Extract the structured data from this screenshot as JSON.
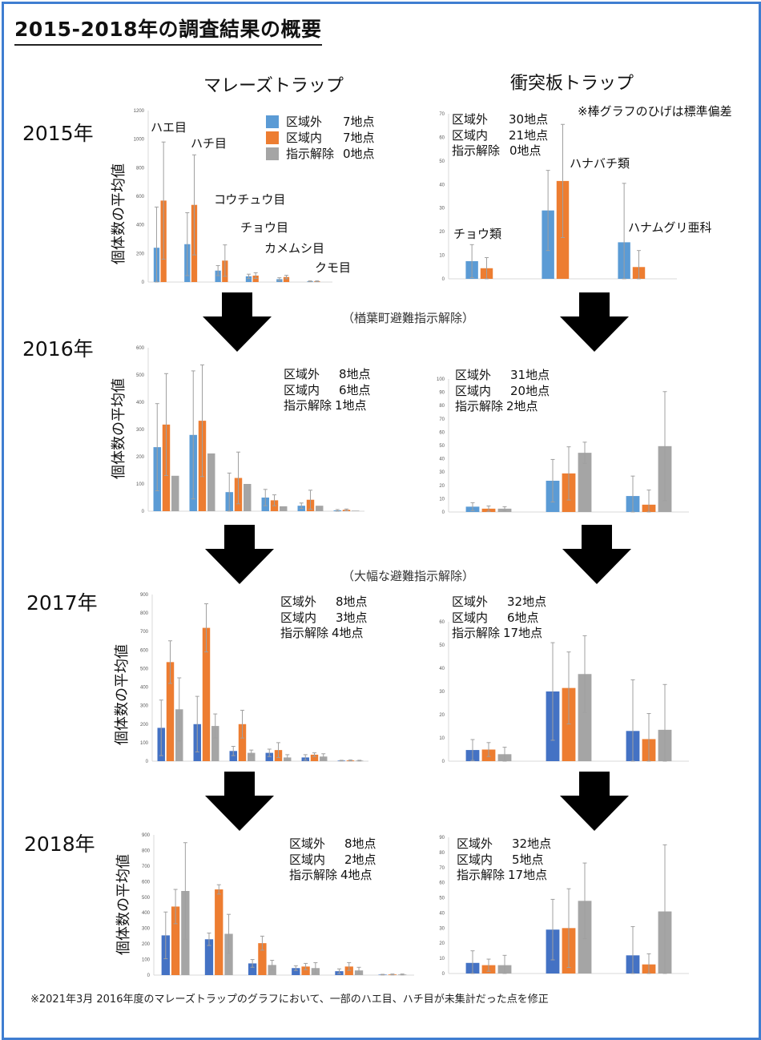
{
  "title": "2015-2018年の調査結果の概要",
  "columns": {
    "malaise": "マレーズトラップ",
    "impact": "衝突板トラップ"
  },
  "years": [
    "2015年",
    "2016年",
    "2017年",
    "2018年"
  ],
  "ylabel": "個体数の平均値",
  "std_note": "※棒グラフのひげは標準偏差",
  "transitions": {
    "t2016": "（楢葉町避難指示解除）",
    "t2017": "（大幅な避難指示解除）"
  },
  "footnote": "※2021年3月 2016年度のマレーズトラップのグラフにおいて、一部のハエ目、ハチ目が未集計だった点を修正",
  "legend": {
    "outside": "区域外",
    "inside": "区域内",
    "lifted": "指示解除",
    "colors_2015": {
      "outside": "#5b9bd5",
      "inside": "#ed7d31",
      "lifted": "#a5a5a5"
    }
  },
  "malaise_categories_2015": [
    "ハエ目",
    "ハチ目",
    "コウチュウ目",
    "チョウ目",
    "カメムシ目",
    "クモ目"
  ],
  "impact_categories_2015": [
    "チョウ類",
    "ハナバチ類",
    "ハナムグリ亜科"
  ],
  "counts": {
    "m2015": [
      "7地点",
      "7地点",
      "0地点"
    ],
    "i2015": [
      "30地点",
      "21地点",
      "0地点"
    ],
    "m2016": [
      "8地点",
      "6地点",
      "1地点"
    ],
    "i2016": [
      "31地点",
      "20地点",
      "2地点"
    ],
    "m2017": [
      "8地点",
      "3地点",
      "4地点"
    ],
    "i2017": [
      "32地点",
      "6地点",
      "17地点"
    ],
    "m2018": [
      "8地点",
      "2地点",
      "4地点"
    ],
    "i2018": [
      "32地点",
      "5地点",
      "17地点"
    ]
  },
  "chart_data": [
    {
      "id": "m2015",
      "type": "bar",
      "title": "マレーズトラップ 2015年",
      "ylabel": "個体数の平均値",
      "ylim": [
        0,
        1200
      ],
      "yticks": [
        0,
        200,
        400,
        600,
        800,
        1000,
        1200
      ],
      "categories": [
        "ハエ目",
        "ハチ目",
        "コウチュウ目",
        "チョウ目",
        "カメムシ目",
        "クモ目"
      ],
      "colors": [
        "#5b9bd5",
        "#ed7d31",
        "#a5a5a5"
      ],
      "series": [
        {
          "name": "区域外",
          "values": [
            240,
            265,
            80,
            40,
            20,
            5
          ],
          "err": [
            285,
            220,
            35,
            15,
            10,
            3
          ]
        },
        {
          "name": "区域内",
          "values": [
            570,
            540,
            150,
            45,
            35,
            5
          ],
          "err": [
            410,
            350,
            110,
            20,
            12,
            3
          ]
        }
      ]
    },
    {
      "id": "i2015",
      "type": "bar",
      "title": "衝突板トラップ 2015年",
      "ylabel": "",
      "ylim": [
        0,
        70
      ],
      "yticks": [
        0,
        10,
        20,
        30,
        40,
        50,
        60,
        70
      ],
      "categories": [
        "チョウ類",
        "ハナバチ類",
        "ハナムグリ亜科"
      ],
      "colors": [
        "#5b9bd5",
        "#ed7d31",
        "#a5a5a5"
      ],
      "series": [
        {
          "name": "区域外",
          "values": [
            7.5,
            29,
            15.5
          ],
          "err": [
            7,
            17,
            25
          ]
        },
        {
          "name": "区域内",
          "values": [
            4.5,
            41.5,
            5
          ],
          "err": [
            4.5,
            24,
            7
          ]
        }
      ]
    },
    {
      "id": "m2016",
      "type": "bar",
      "title": "マレーズトラップ 2016年",
      "ylabel": "個体数の平均値",
      "ylim": [
        0,
        600
      ],
      "yticks": [
        0,
        100,
        200,
        300,
        400,
        500,
        600
      ],
      "categories": [
        "ハエ目",
        "ハチ目",
        "コウチュウ目",
        "チョウ目",
        "カメムシ目",
        "クモ目"
      ],
      "colors": [
        "#5b9bd5",
        "#ed7d31",
        "#a5a5a5"
      ],
      "series": [
        {
          "name": "区域外",
          "values": [
            235,
            280,
            70,
            50,
            20,
            3
          ],
          "err": [
            160,
            235,
            70,
            30,
            10,
            3
          ]
        },
        {
          "name": "区域内",
          "values": [
            318,
            332,
            122,
            40,
            42,
            5
          ],
          "err": [
            187,
            205,
            95,
            20,
            35,
            3
          ]
        },
        {
          "name": "指示解除",
          "values": [
            130,
            212,
            100,
            18,
            20,
            2
          ],
          "err": [
            0,
            0,
            0,
            0,
            0,
            0
          ]
        }
      ]
    },
    {
      "id": "i2016",
      "type": "bar",
      "title": "衝突板トラップ 2016年",
      "ylabel": "",
      "ylim": [
        0,
        100
      ],
      "yticks": [
        0,
        10,
        20,
        30,
        40,
        50,
        60,
        70,
        80,
        90,
        100
      ],
      "categories": [
        "チョウ類",
        "ハナバチ類",
        "ハナムグリ亜科"
      ],
      "colors": [
        "#5b9bd5",
        "#ed7d31",
        "#a5a5a5"
      ],
      "series": [
        {
          "name": "区域外",
          "values": [
            4,
            23.5,
            12
          ],
          "err": [
            3,
            16,
            15
          ]
        },
        {
          "name": "区域内",
          "values": [
            2.5,
            29,
            5.5
          ],
          "err": [
            2,
            20,
            11
          ]
        },
        {
          "name": "指示解除",
          "values": [
            2.5,
            44.5,
            49.5
          ],
          "err": [
            1.5,
            8,
            41
          ]
        }
      ]
    },
    {
      "id": "m2017",
      "type": "bar",
      "title": "マレーズトラップ 2017年",
      "ylabel": "個体数の平均値",
      "ylim": [
        0,
        900
      ],
      "yticks": [
        0,
        100,
        200,
        300,
        400,
        500,
        600,
        700,
        800,
        900
      ],
      "categories": [
        "ハエ目",
        "ハチ目",
        "コウチュウ目",
        "チョウ目",
        "カメムシ目",
        "クモ目"
      ],
      "colors": [
        "#4472c4",
        "#ed7d31",
        "#a5a5a5"
      ],
      "series": [
        {
          "name": "区域外",
          "values": [
            180,
            200,
            55,
            45,
            20,
            3
          ],
          "err": [
            150,
            150,
            25,
            20,
            15,
            2
          ]
        },
        {
          "name": "区域内",
          "values": [
            535,
            720,
            200,
            60,
            35,
            4
          ],
          "err": [
            115,
            130,
            75,
            40,
            10,
            3
          ]
        },
        {
          "name": "指示解除",
          "values": [
            280,
            190,
            45,
            20,
            25,
            3
          ],
          "err": [
            170,
            65,
            15,
            15,
            15,
            2
          ]
        }
      ]
    },
    {
      "id": "i2017",
      "type": "bar",
      "title": "衝突板トラップ 2017年",
      "ylabel": "",
      "ylim": [
        0,
        60
      ],
      "yticks": [
        0,
        10,
        20,
        30,
        40,
        50,
        60
      ],
      "categories": [
        "チョウ類",
        "ハナバチ類",
        "ハナムグリ亜科"
      ],
      "colors": [
        "#4472c4",
        "#ed7d31",
        "#a5a5a5"
      ],
      "series": [
        {
          "name": "区域外",
          "values": [
            4.8,
            30,
            13
          ],
          "err": [
            4.5,
            21,
            22
          ]
        },
        {
          "name": "区域内",
          "values": [
            5,
            31.5,
            9.5
          ],
          "err": [
            3,
            15.5,
            11
          ]
        },
        {
          "name": "指示解除",
          "values": [
            3,
            37.5,
            13.5
          ],
          "err": [
            3,
            16.5,
            19.5
          ]
        }
      ]
    },
    {
      "id": "m2018",
      "type": "bar",
      "title": "マレーズトラップ 2018年",
      "ylabel": "個体数の平均値",
      "ylim": [
        0,
        900
      ],
      "yticks": [
        0,
        100,
        200,
        300,
        400,
        500,
        600,
        700,
        800,
        900
      ],
      "categories": [
        "ハエ目",
        "ハチ目",
        "コウチュウ目",
        "チョウ目",
        "カメムシ目",
        "クモ目"
      ],
      "colors": [
        "#4472c4",
        "#ed7d31",
        "#a5a5a5"
      ],
      "series": [
        {
          "name": "区域外",
          "values": [
            255,
            230,
            75,
            45,
            25,
            3
          ],
          "err": [
            150,
            40,
            25,
            15,
            15,
            2
          ]
        },
        {
          "name": "区域内",
          "values": [
            440,
            550,
            205,
            55,
            55,
            4
          ],
          "err": [
            110,
            30,
            45,
            20,
            25,
            3
          ]
        },
        {
          "name": "指示解除",
          "values": [
            540,
            265,
            65,
            45,
            30,
            4
          ],
          "err": [
            310,
            125,
            30,
            35,
            20,
            3
          ]
        }
      ]
    },
    {
      "id": "i2018",
      "type": "bar",
      "title": "衝突板トラップ 2018年",
      "ylabel": "",
      "ylim": [
        0,
        90
      ],
      "yticks": [
        0,
        10,
        20,
        30,
        40,
        50,
        60,
        70,
        80,
        90
      ],
      "categories": [
        "チョウ類",
        "ハナバチ類",
        "ハナムグリ亜科"
      ],
      "colors": [
        "#4472c4",
        "#ed7d31",
        "#a5a5a5"
      ],
      "series": [
        {
          "name": "区域外",
          "values": [
            7,
            29,
            12
          ],
          "err": [
            8,
            20,
            19
          ]
        },
        {
          "name": "区域内",
          "values": [
            5.5,
            30,
            6
          ],
          "err": [
            4,
            26,
            7
          ]
        },
        {
          "name": "指示解除",
          "values": [
            5.5,
            48,
            41
          ],
          "err": [
            6.5,
            25,
            44
          ]
        }
      ]
    }
  ]
}
